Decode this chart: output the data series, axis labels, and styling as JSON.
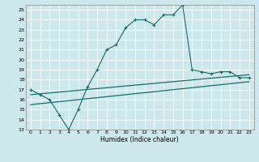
{
  "xlabel": "Humidex (Indice chaleur)",
  "bg_color": "#cce8ec",
  "line_color": "#1a6b6b",
  "grid_color": "#b8d8dc",
  "xlim": [
    -0.5,
    23.5
  ],
  "ylim": [
    13,
    25.5
  ],
  "yticks": [
    13,
    14,
    15,
    16,
    17,
    18,
    19,
    20,
    21,
    22,
    23,
    24,
    25
  ],
  "xticks": [
    0,
    1,
    2,
    3,
    4,
    5,
    6,
    7,
    8,
    9,
    10,
    11,
    12,
    13,
    14,
    15,
    16,
    17,
    18,
    19,
    20,
    21,
    22,
    23
  ],
  "main_x": [
    0,
    1,
    2,
    3,
    4,
    5,
    6,
    7,
    8,
    9,
    10,
    11,
    12,
    13,
    14,
    15,
    16,
    17,
    18,
    19,
    20,
    21,
    22,
    23
  ],
  "main_y": [
    17.0,
    16.5,
    16.0,
    14.5,
    13.0,
    15.0,
    17.3,
    19.0,
    21.0,
    21.5,
    23.2,
    24.0,
    24.0,
    23.5,
    24.5,
    24.5,
    25.5,
    19.0,
    18.8,
    18.6,
    18.8,
    18.8,
    18.2,
    18.2
  ],
  "line2_x": [
    0,
    23
  ],
  "line2_y": [
    16.5,
    18.5
  ],
  "line3_x": [
    0,
    23
  ],
  "line3_y": [
    15.5,
    17.8
  ]
}
